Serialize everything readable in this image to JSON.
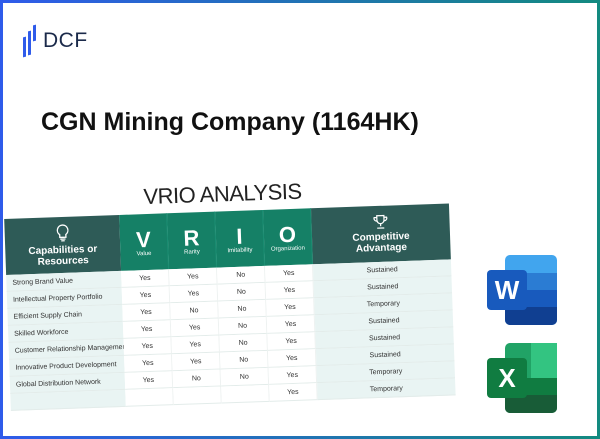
{
  "brand": {
    "logo_text": "DCF",
    "accent": "#2f5bea"
  },
  "title": "CGN Mining Company (1164HK)",
  "vrio": {
    "heading": "VRIO ANALYSIS",
    "columns": {
      "capabilities": "Capabilities or Resources",
      "v": "V",
      "v_label": "Value",
      "r": "R",
      "r_label": "Rarity",
      "i": "I",
      "i_label": "Imitability",
      "o": "O",
      "o_label": "Organization",
      "advantage": "Competitive Advantage"
    },
    "rows": [
      {
        "name": "Strong Brand Value",
        "v": "Yes",
        "r": "Yes",
        "i": "No",
        "o": "Yes",
        "adv": "Sustained"
      },
      {
        "name": "Intellectual Property Portfolio",
        "v": "Yes",
        "r": "Yes",
        "i": "No",
        "o": "Yes",
        "adv": "Sustained"
      },
      {
        "name": "Efficient Supply Chain",
        "v": "Yes",
        "r": "No",
        "i": "No",
        "o": "Yes",
        "adv": "Temporary"
      },
      {
        "name": "Skilled Workforce",
        "v": "Yes",
        "r": "Yes",
        "i": "No",
        "o": "Yes",
        "adv": "Sustained"
      },
      {
        "name": "Customer Relationship Management",
        "v": "Yes",
        "r": "Yes",
        "i": "No",
        "o": "Yes",
        "adv": "Sustained"
      },
      {
        "name": "Innovative Product Development",
        "v": "Yes",
        "r": "Yes",
        "i": "No",
        "o": "Yes",
        "adv": "Sustained"
      },
      {
        "name": "Global Distribution Network",
        "v": "Yes",
        "r": "No",
        "i": "No",
        "o": "Yes",
        "adv": "Temporary"
      },
      {
        "name": "",
        "v": "",
        "r": "",
        "i": "",
        "o": "Yes",
        "adv": "Temporary"
      }
    ],
    "colors": {
      "dark": "#2e5b57",
      "green": "#158066",
      "light": "#e9f4f3"
    }
  },
  "apps": {
    "word": "W",
    "excel": "X"
  }
}
